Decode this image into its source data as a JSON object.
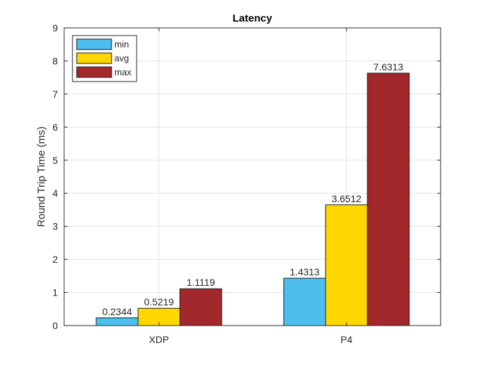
{
  "chart_data": {
    "type": "bar",
    "title": "Latency",
    "xlabel": "",
    "ylabel": "Round Trip Time (ms)",
    "categories": [
      "XDP",
      "P4"
    ],
    "ylim": [
      0,
      9
    ],
    "yticks": [
      0,
      1,
      2,
      3,
      4,
      5,
      6,
      7,
      8,
      9
    ],
    "grid": true,
    "legend_position": "top-left",
    "series": [
      {
        "name": "min",
        "color": "#4DBEEE",
        "values": [
          0.2344,
          1.4313
        ],
        "labels": [
          "0.2344",
          "1.4313"
        ]
      },
      {
        "name": "avg",
        "color": "#FFD700",
        "values": [
          0.5219,
          3.6512
        ],
        "labels": [
          "0.5219",
          "3.6512"
        ]
      },
      {
        "name": "max",
        "color": "#A2282C",
        "values": [
          1.1119,
          7.6313
        ],
        "labels": [
          "1.1119",
          "7.6313"
        ]
      }
    ]
  }
}
